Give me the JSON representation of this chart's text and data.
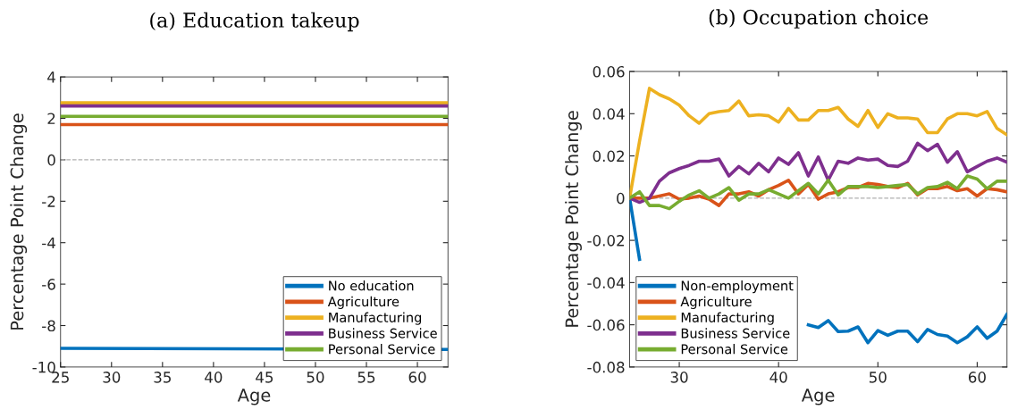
{
  "chart_data": [
    {
      "type": "line",
      "title": "(a) Education takeup",
      "xlabel": "Age",
      "ylabel": "Percentage Point Change",
      "x": [
        25,
        63
      ],
      "series": [
        {
          "name": "No education",
          "color": "#0072bd",
          "values": [
            -9.1,
            -9.15
          ]
        },
        {
          "name": "Agriculture",
          "color": "#d95319",
          "values": [
            1.7,
            1.7
          ]
        },
        {
          "name": "Manufacturing",
          "color": "#edb120",
          "values": [
            2.75,
            2.75
          ]
        },
        {
          "name": "Business Service",
          "color": "#7e2f8e",
          "values": [
            2.6,
            2.6
          ]
        },
        {
          "name": "Personal Service",
          "color": "#77ac30",
          "values": [
            2.1,
            2.1
          ]
        }
      ],
      "xlim": [
        25,
        63
      ],
      "ylim": [
        -10,
        4
      ],
      "xticks": [
        25,
        30,
        35,
        40,
        45,
        50,
        55,
        60
      ],
      "yticks": [
        -10,
        -8,
        -6,
        -4,
        -2,
        0,
        2,
        4
      ],
      "ref_lines": [
        {
          "axis": "y",
          "value": 0,
          "color": "#b0b0b0",
          "line_style": "dashed"
        }
      ],
      "legend": "bottom right",
      "grid": false,
      "marker": "none",
      "line_style": "solid"
    },
    {
      "type": "line",
      "title": "(b) Occupation choice",
      "xlabel": "Age",
      "ylabel": "Percentage Point Change",
      "x": [
        25,
        26,
        27,
        28,
        29,
        30,
        31,
        32,
        33,
        34,
        35,
        36,
        37,
        38,
        39,
        40,
        41,
        42,
        43,
        44,
        45,
        46,
        47,
        48,
        49,
        50,
        51,
        52,
        53,
        54,
        55,
        56,
        57,
        58,
        59,
        60,
        61,
        62,
        63
      ],
      "series": [
        {
          "name": "Non-employment",
          "color": "#0072bd",
          "values": [
            0,
            -0.029,
            null,
            null,
            null,
            null,
            null,
            null,
            null,
            null,
            null,
            null,
            null,
            null,
            null,
            null,
            null,
            null,
            -0.06,
            -0.0613,
            -0.058,
            -0.0632,
            -0.063,
            -0.061,
            -0.0685,
            -0.0627,
            -0.065,
            -0.063,
            -0.063,
            -0.068,
            -0.0622,
            -0.0646,
            -0.0653,
            -0.0685,
            -0.0657,
            -0.061,
            -0.0664,
            -0.063,
            -0.055
          ]
        },
        {
          "name": "Agriculture",
          "color": "#d95319",
          "values": [
            0,
            0,
            0,
            0.001,
            0.002,
            -0.0005,
            0,
            0.001,
            -0.0005,
            -0.0035,
            0.002,
            0.002,
            0.003,
            0.001,
            0.004,
            0.006,
            0.0085,
            0.002,
            0.0065,
            -0.0005,
            0.002,
            0.003,
            0.005,
            0.005,
            0.007,
            0.0065,
            0.0055,
            0.005,
            0.007,
            0.0015,
            0.0045,
            0.0045,
            0.0055,
            0.0035,
            0.0045,
            0.001,
            0.0045,
            0.004,
            0.003
          ]
        },
        {
          "name": "Manufacturing",
          "color": "#edb120",
          "values": [
            0,
            0.027,
            0.052,
            0.049,
            0.047,
            0.044,
            0.039,
            0.0355,
            0.04,
            0.041,
            0.0415,
            0.046,
            0.039,
            0.0395,
            0.039,
            0.036,
            0.0425,
            0.037,
            0.037,
            0.0415,
            0.0415,
            0.043,
            0.0375,
            0.034,
            0.0415,
            0.0335,
            0.04,
            0.038,
            0.038,
            0.0375,
            0.031,
            0.031,
            0.0375,
            0.04,
            0.04,
            0.039,
            0.041,
            0.033,
            0.03
          ]
        },
        {
          "name": "Business Service",
          "color": "#7e2f8e",
          "values": [
            0,
            -0.002,
            0,
            0.008,
            0.012,
            0.014,
            0.0155,
            0.0175,
            0.0175,
            0.0185,
            0.0105,
            0.015,
            0.0115,
            0.0165,
            0.0125,
            0.019,
            0.016,
            0.0215,
            0.0105,
            0.0195,
            0.0085,
            0.0175,
            0.0165,
            0.019,
            0.018,
            0.0185,
            0.0155,
            0.015,
            0.0175,
            0.026,
            0.0225,
            0.0255,
            0.017,
            0.022,
            0.0125,
            0.015,
            0.0175,
            0.019,
            0.017
          ]
        },
        {
          "name": "Personal Service",
          "color": "#77ac30",
          "values": [
            0,
            0.003,
            -0.0035,
            -0.0035,
            -0.005,
            -0.0015,
            0.0015,
            0.0035,
            0,
            0.002,
            0.005,
            -0.001,
            0.002,
            0.002,
            0.004,
            0.002,
            0,
            0.0035,
            0.007,
            0.002,
            0.0085,
            0.0015,
            0.0055,
            0.0055,
            0.0055,
            0.005,
            0.0055,
            0.006,
            0.0065,
            0.002,
            0.005,
            0.0055,
            0.0075,
            0.0045,
            0.0105,
            0.009,
            0.0045,
            0.008,
            0.008
          ]
        }
      ],
      "xlim": [
        25,
        63
      ],
      "ylim": [
        -0.08,
        0.06
      ],
      "xticks": [
        30,
        40,
        50,
        60
      ],
      "yticks": [
        -0.08,
        -0.06,
        -0.04,
        -0.02,
        0,
        0.02,
        0.04,
        0.06
      ],
      "ref_lines": [
        {
          "axis": "y",
          "value": 0,
          "color": "#b0b0b0",
          "line_style": "dashed"
        }
      ],
      "legend": "bottom left",
      "grid": false,
      "marker": "none",
      "line_style": "solid"
    }
  ]
}
